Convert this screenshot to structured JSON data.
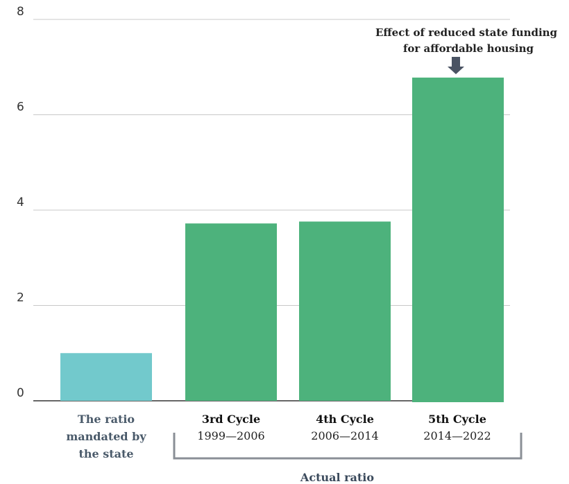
{
  "chart_data": {
    "type": "bar",
    "ylim": [
      0,
      8
    ],
    "yticks": [
      0,
      2,
      4,
      6,
      8
    ],
    "grid": true,
    "categories": [
      {
        "lines": [
          "The ratio",
          "mandated by",
          "the state"
        ],
        "value": 1.0,
        "color": "#72c9cc",
        "label_color": "#4a5a6a",
        "style": "mandated"
      },
      {
        "lines": [
          "3rd Cycle",
          "1999—2006"
        ],
        "value": 3.72,
        "color": "#4db27c",
        "label_color": "#111111",
        "style": "cycle"
      },
      {
        "lines": [
          "4th Cycle",
          "2006—2014"
        ],
        "value": 3.76,
        "color": "#4db27c",
        "label_color": "#111111",
        "style": "cycle"
      },
      {
        "lines": [
          "5th Cycle",
          "2014—2022"
        ],
        "value": 6.78,
        "color": "#4db27c",
        "label_color": "#111111",
        "style": "cycle"
      }
    ],
    "annotation": {
      "lines": [
        "Effect of reduced state funding",
        "for affordable housing"
      ],
      "target_index": 3
    },
    "group_label": "Actual ratio",
    "colors": {
      "grid": "#c8c8c8",
      "axis": "#333333",
      "bracket": "#8a8f96",
      "arrow": "#4a5363"
    }
  }
}
